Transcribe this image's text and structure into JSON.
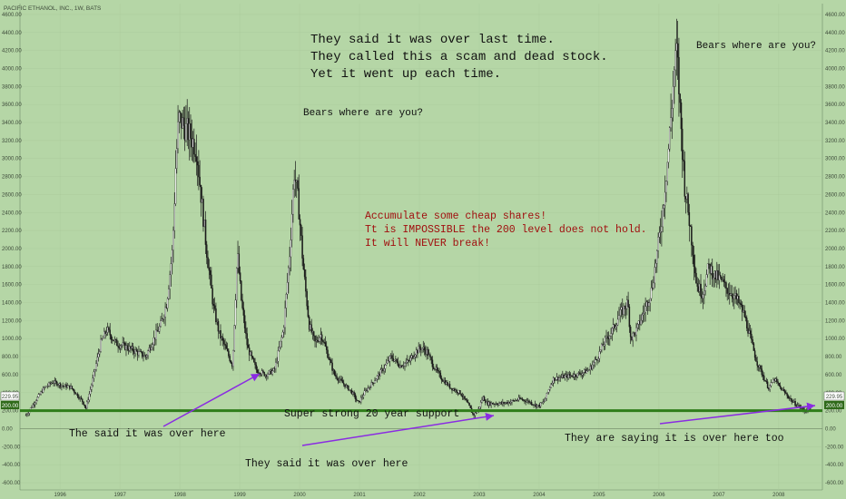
{
  "chart_data": {
    "type": "candlestick",
    "title": "PACIFIC ETHANOL, INC., 1W, BATS",
    "ylim": [
      -680,
      4720
    ],
    "xlim": [
      1995.35,
      2008.75
    ],
    "y_ticks": [
      -600,
      -400,
      -200,
      0,
      200,
      400,
      600,
      800,
      1000,
      1200,
      1400,
      1600,
      1800,
      2000,
      2200,
      2400,
      2600,
      2800,
      3000,
      3200,
      3400,
      3600,
      3800,
      4000,
      4200,
      4400,
      4600
    ],
    "y_tick_labels": [
      "-600.00",
      "-400.00",
      "-200.00",
      "0.00",
      "200.00",
      "400.00",
      "600.00",
      "800.00",
      "1000.00",
      "1200.00",
      "1400.00",
      "1600.00",
      "1800.00",
      "2000.00",
      "2200.00",
      "2400.00",
      "2600.00",
      "2800.00",
      "3000.00",
      "3200.00",
      "3400.00",
      "3600.00",
      "3800.00",
      "4000.00",
      "4200.00",
      "4400.00",
      "4600.00"
    ],
    "x_ticks": [
      1996,
      1997,
      1998,
      1999,
      2000,
      2001,
      2002,
      2003,
      2004,
      2005,
      2006,
      2007,
      2008
    ],
    "x_tick_labels": [
      "1996",
      "1997",
      "1998",
      "1999",
      "2000",
      "2001",
      "2002",
      "2003",
      "2004",
      "2005",
      "2006",
      "2007",
      "2008"
    ],
    "price_path": [
      [
        1995.45,
        150
      ],
      [
        1995.6,
        300
      ],
      [
        1995.75,
        450
      ],
      [
        1995.9,
        520
      ],
      [
        1996.05,
        480
      ],
      [
        1996.2,
        460
      ],
      [
        1996.3,
        380
      ],
      [
        1996.4,
        300
      ],
      [
        1996.45,
        230
      ],
      [
        1996.55,
        500
      ],
      [
        1996.7,
        950
      ],
      [
        1996.8,
        1100
      ],
      [
        1996.95,
        950
      ],
      [
        1997.15,
        900
      ],
      [
        1997.3,
        850
      ],
      [
        1997.45,
        800
      ],
      [
        1997.55,
        950
      ],
      [
        1997.7,
        1150
      ],
      [
        1997.8,
        1400
      ],
      [
        1997.9,
        2000
      ],
      [
        1997.95,
        2900
      ],
      [
        1998.0,
        3450
      ],
      [
        1998.1,
        3350
      ],
      [
        1998.2,
        3250
      ],
      [
        1998.3,
        3100
      ],
      [
        1998.38,
        2550
      ],
      [
        1998.48,
        1900
      ],
      [
        1998.58,
        1350
      ],
      [
        1998.68,
        1050
      ],
      [
        1998.78,
        900
      ],
      [
        1998.9,
        700
      ],
      [
        1998.98,
        1950
      ],
      [
        1999.05,
        1400
      ],
      [
        1999.15,
        900
      ],
      [
        1999.3,
        650
      ],
      [
        1999.45,
        600
      ],
      [
        1999.6,
        650
      ],
      [
        1999.75,
        1100
      ],
      [
        1999.85,
        1900
      ],
      [
        1999.93,
        2850
      ],
      [
        2000.0,
        2500
      ],
      [
        2000.08,
        1800
      ],
      [
        2000.18,
        1150
      ],
      [
        2000.28,
        950
      ],
      [
        2000.38,
        1050
      ],
      [
        2000.5,
        800
      ],
      [
        2000.6,
        600
      ],
      [
        2000.75,
        500
      ],
      [
        2000.9,
        400
      ],
      [
        2001.0,
        280
      ],
      [
        2001.1,
        400
      ],
      [
        2001.25,
        520
      ],
      [
        2001.4,
        650
      ],
      [
        2001.55,
        800
      ],
      [
        2001.7,
        700
      ],
      [
        2001.85,
        750
      ],
      [
        2001.95,
        850
      ],
      [
        2002.05,
        900
      ],
      [
        2002.15,
        850
      ],
      [
        2002.25,
        700
      ],
      [
        2002.4,
        550
      ],
      [
        2002.55,
        450
      ],
      [
        2002.7,
        400
      ],
      [
        2002.85,
        250
      ],
      [
        2002.92,
        150
      ],
      [
        2003.0,
        200
      ],
      [
        2003.08,
        350
      ],
      [
        2003.15,
        280
      ],
      [
        2003.4,
        280
      ],
      [
        2003.55,
        300
      ],
      [
        2003.7,
        330
      ],
      [
        2003.85,
        300
      ],
      [
        2004.0,
        250
      ],
      [
        2004.1,
        300
      ],
      [
        2004.25,
        550
      ],
      [
        2004.45,
        580
      ],
      [
        2004.65,
        600
      ],
      [
        2004.85,
        650
      ],
      [
        2005.0,
        800
      ],
      [
        2005.1,
        950
      ],
      [
        2005.25,
        1100
      ],
      [
        2005.35,
        1250
      ],
      [
        2005.5,
        1400
      ],
      [
        2005.55,
        1000
      ],
      [
        2005.65,
        1100
      ],
      [
        2005.8,
        1350
      ],
      [
        2005.9,
        1550
      ],
      [
        2006.0,
        2000
      ],
      [
        2006.08,
        2400
      ],
      [
        2006.18,
        3100
      ],
      [
        2006.28,
        4000
      ],
      [
        2006.32,
        4200
      ],
      [
        2006.38,
        3450
      ],
      [
        2006.45,
        2700
      ],
      [
        2006.55,
        2200
      ],
      [
        2006.65,
        1600
      ],
      [
        2006.75,
        1500
      ],
      [
        2006.85,
        1800
      ],
      [
        2006.95,
        1700
      ],
      [
        2007.05,
        1650
      ],
      [
        2007.15,
        1550
      ],
      [
        2007.25,
        1500
      ],
      [
        2007.35,
        1400
      ],
      [
        2007.45,
        1250
      ],
      [
        2007.55,
        1000
      ],
      [
        2007.65,
        750
      ],
      [
        2007.75,
        600
      ],
      [
        2007.85,
        450
      ],
      [
        2007.95,
        550
      ],
      [
        2008.05,
        450
      ],
      [
        2008.15,
        380
      ],
      [
        2008.25,
        300
      ],
      [
        2008.35,
        250
      ],
      [
        2008.45,
        200
      ],
      [
        2008.55,
        230
      ]
    ],
    "support_level": 200,
    "support_label": "200.00",
    "last_price": 229.95,
    "last_price_label": "229.95",
    "annotations": {
      "headline": [
        "They said it was over last time.",
        "They called this a scam and dead stock.",
        "Yet it went up each time."
      ],
      "bears_1": "Bears where are you?",
      "bears_2": "Bears where are you?",
      "accumulate": [
        "Accumulate some cheap shares!",
        "Tt is IMPOSSIBLE the 200 level does not hold.",
        "It will NEVER break!"
      ],
      "support": "Super strong 20 year support",
      "over_here_1": "The said it was over here",
      "over_here_2": "They said it was over here",
      "over_here_3": "They are saying it is over here too"
    },
    "colors": {
      "background": "#b5d6a6",
      "candle": "#1a1a1a",
      "support_line": "#2f7d1a",
      "arrow": "#8a2be2",
      "red_text": "#a10f0f",
      "price_label_bg": "#ffffff",
      "support_label_bg": "#2f6a1a"
    },
    "grid": true,
    "legend": "none"
  }
}
